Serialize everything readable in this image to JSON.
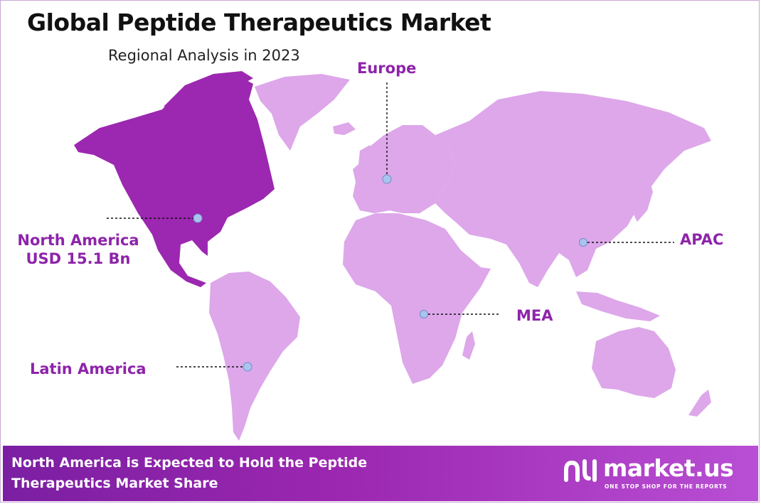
{
  "header": {
    "title": "Global Peptide Therapeutics Market",
    "subtitle": "Regional Analysis in 2023"
  },
  "colors": {
    "highlight_region": "#9c27b0",
    "other_regions": "#dda7ea",
    "label_text": "#8e24aa",
    "marker_fill": "#a9c4ee",
    "footer_start": "#7b1fa2",
    "footer_end": "#b84fd4"
  },
  "regions": {
    "north_america": {
      "name": "North America",
      "value": "USD 15.1 Bn",
      "highlighted": true
    },
    "europe": {
      "name": "Europe",
      "highlighted": false
    },
    "apac": {
      "name": "APAC",
      "highlighted": false
    },
    "mea": {
      "name": "MEA",
      "highlighted": false
    },
    "latin_america": {
      "name": "Latin America",
      "highlighted": false
    }
  },
  "footer": {
    "line1": "North America is Expected to Hold the Peptide",
    "line2": "Therapeutics Market Share"
  },
  "brand": {
    "name": "market.us",
    "tagline": "ONE STOP SHOP FOR THE REPORTS",
    "icon": "market-us-logo-icon"
  }
}
